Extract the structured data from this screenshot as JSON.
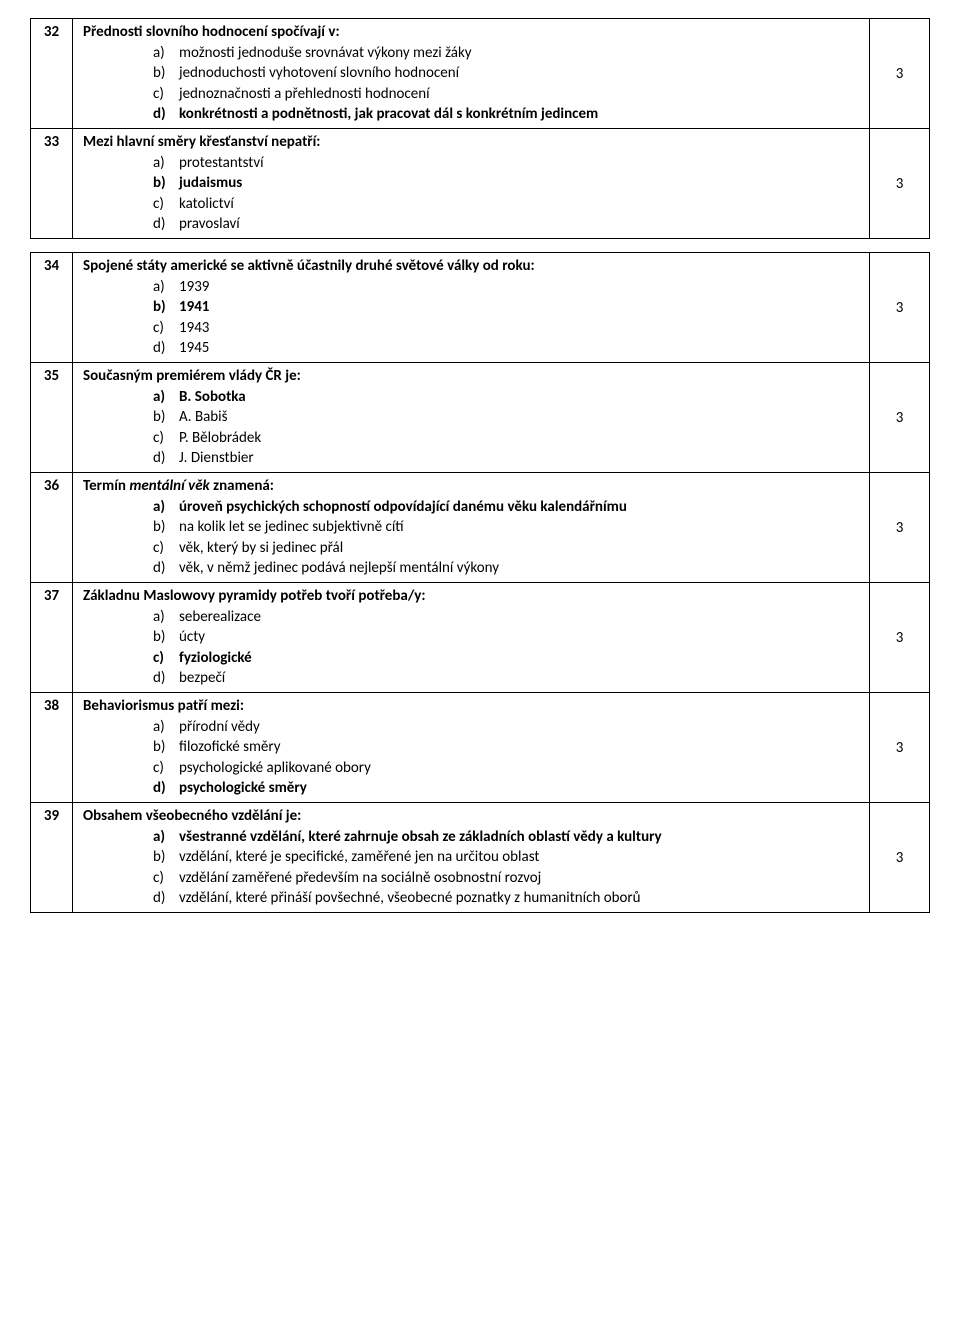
{
  "questions": [
    {
      "num": "32",
      "stem": "Přednosti slovního hodnocení spočívají v:",
      "stem_italic": "",
      "options": [
        {
          "letter": "a)",
          "text": "možnosti jednoduše srovnávat výkony mezi žáky",
          "bold": false
        },
        {
          "letter": "b)",
          "text": "jednoduchosti vyhotovení slovního hodnocení",
          "bold": false
        },
        {
          "letter": "c)",
          "text": "jednoznačnosti a přehlednosti hodnocení",
          "bold": false
        },
        {
          "letter": "d)",
          "text": "konkrétnosti a podnětnosti, jak pracovat dál s konkrétním jedincem",
          "bold": true
        }
      ],
      "score": "3"
    },
    {
      "num": "33",
      "stem": "Mezi hlavní směry křesťanství nepatří:",
      "stem_italic": "",
      "options": [
        {
          "letter": "a)",
          "text": "protestantství",
          "bold": false
        },
        {
          "letter": "b)",
          "text": "judaismus",
          "bold": true
        },
        {
          "letter": "c)",
          "text": "katolictví",
          "bold": false
        },
        {
          "letter": "d)",
          "text": "pravoslaví",
          "bold": false
        }
      ],
      "score": "3"
    },
    {
      "num": "34",
      "stem": "Spojené státy americké se aktivně účastnily druhé světové války od roku:",
      "stem_italic": "",
      "options": [
        {
          "letter": "a)",
          "text": "1939",
          "bold": false
        },
        {
          "letter": "b)",
          "text": "1941",
          "bold": true
        },
        {
          "letter": "c)",
          "text": "1943",
          "bold": false
        },
        {
          "letter": "d)",
          "text": "1945",
          "bold": false
        }
      ],
      "score": "3"
    },
    {
      "num": "35",
      "stem": "Současným premiérem vlády ČR je:",
      "stem_italic": "",
      "options": [
        {
          "letter": "a)",
          "text": "B. Sobotka",
          "bold": true
        },
        {
          "letter": "b)",
          "text": "A. Babiš",
          "bold": false
        },
        {
          "letter": "c)",
          "text": "P. Bělobrádek",
          "bold": false
        },
        {
          "letter": "d)",
          "text": "J. Dienstbier",
          "bold": false
        }
      ],
      "score": "3"
    },
    {
      "num": "36",
      "stem_prefix": "Termín ",
      "stem_italic": "mentální věk",
      "stem_suffix": " znamená:",
      "options": [
        {
          "letter": "a)",
          "text": "úroveň psychických schopností odpovídající danému věku kalendářnímu",
          "bold": true
        },
        {
          "letter": "b)",
          "text": "na kolik let se jedinec subjektivně cítí",
          "bold": false
        },
        {
          "letter": "c)",
          "text": "věk, který by si jedinec přál",
          "bold": false
        },
        {
          "letter": "d)",
          "text": "věk, v němž jedinec podává nejlepší mentální výkony",
          "bold": false
        }
      ],
      "score": "3"
    },
    {
      "num": "37",
      "stem": "Základnu Maslowovy pyramidy potřeb tvoří potřeba/y:",
      "stem_italic": "",
      "options": [
        {
          "letter": "a)",
          "text": "seberealizace",
          "bold": false
        },
        {
          "letter": "b)",
          "text": "úcty",
          "bold": false
        },
        {
          "letter": "c)",
          "text": "fyziologické",
          "bold": true
        },
        {
          "letter": "d)",
          "text": "bezpečí",
          "bold": false
        }
      ],
      "score": "3"
    },
    {
      "num": "38",
      "stem": "Behaviorismus patří mezi:",
      "stem_italic": "",
      "options": [
        {
          "letter": "a)",
          "text": "přírodní vědy",
          "bold": false
        },
        {
          "letter": "b)",
          "text": "filozofické směry",
          "bold": false
        },
        {
          "letter": "c)",
          "text": "psychologické aplikované obory",
          "bold": false
        },
        {
          "letter": "d)",
          "text": "psychologické směry",
          "bold": true
        }
      ],
      "score": "3"
    },
    {
      "num": "39",
      "stem": "Obsahem všeobecného vzdělání je:",
      "stem_italic": "",
      "options": [
        {
          "letter": "a)",
          "text": "všestranné vzdělání, které zahrnuje obsah ze základních oblastí vědy a kultury",
          "bold": true
        },
        {
          "letter": "b)",
          "text": "vzdělání, které je specifické, zaměřené jen na určitou oblast",
          "bold": false
        },
        {
          "letter": "c)",
          "text": "vzdělání zaměřené především na sociálně osobnostní rozvoj",
          "bold": false
        },
        {
          "letter": "d)",
          "text": "vzdělání, které přináší povšechné, všeobecné poznatky z humanitních oborů",
          "bold": false
        }
      ],
      "score": "3"
    }
  ]
}
